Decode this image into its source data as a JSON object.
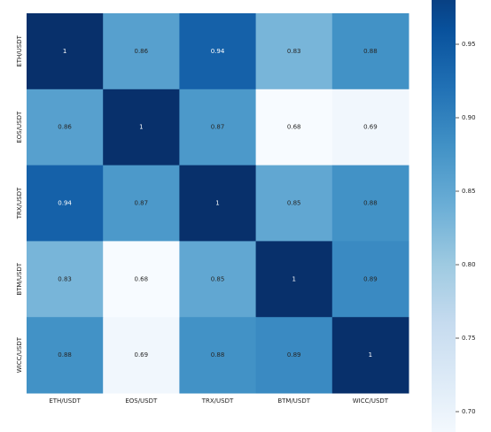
{
  "chart_data": {
    "type": "heatmap",
    "x_categories": [
      "ETH/USDT",
      "EOS/USDT",
      "TRX/USDT",
      "BTM/USDT",
      "WICC/USDT"
    ],
    "y_categories": [
      "ETH/USDT",
      "EOS/USDT",
      "TRX/USDT",
      "BTM/USDT",
      "WICC/USDT"
    ],
    "values": [
      [
        1,
        0.86,
        0.94,
        0.83,
        0.88
      ],
      [
        0.86,
        1,
        0.87,
        0.68,
        0.69
      ],
      [
        0.94,
        0.87,
        1,
        0.85,
        0.88
      ],
      [
        0.83,
        0.68,
        0.85,
        1,
        0.89
      ],
      [
        0.88,
        0.69,
        0.88,
        0.89,
        1
      ]
    ],
    "clim": [
      0.68,
      1
    ],
    "colormap": [
      "#f7fbff",
      "#deebf7",
      "#c6dbef",
      "#9ecae1",
      "#6baed6",
      "#4292c6",
      "#2171b5",
      "#08519c",
      "#08306b"
    ],
    "cticks": [
      {
        "value": 0.7,
        "label": "0.70"
      },
      0.75,
      {
        "value": 0.8,
        "label": "0.80"
      },
      0.85,
      {
        "value": 0.9,
        "label": "0.90"
      },
      0.95
    ]
  }
}
